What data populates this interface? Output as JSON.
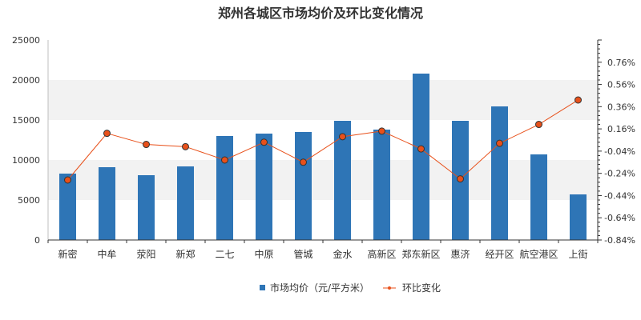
{
  "chart_data": {
    "type": "bar",
    "title": "郑州各城区市场均价及环比变化情况",
    "categories": [
      "新密",
      "中牟",
      "荥阳",
      "新郑",
      "二七",
      "中原",
      "管城",
      "金水",
      "高新区",
      "郑东新区",
      "惠济",
      "经开区",
      "航空港区",
      "上街"
    ],
    "series": [
      {
        "name": "市场均价（元/平方米）",
        "type": "bar",
        "axis": "left",
        "color": "#2e75b6",
        "values": [
          8300,
          9100,
          8100,
          9200,
          13000,
          13300,
          13500,
          14900,
          13800,
          20800,
          14900,
          16700,
          10700,
          5700
        ]
      },
      {
        "name": "环比变化",
        "type": "line",
        "axis": "right",
        "line_color": "#e8501a",
        "marker_color": "#e8501a",
        "values": [
          -0.3,
          0.12,
          0.02,
          0.0,
          -0.12,
          0.04,
          -0.14,
          0.09,
          0.14,
          -0.02,
          -0.29,
          0.03,
          0.2,
          0.42
        ]
      }
    ],
    "left_axis": {
      "min": 0,
      "max": 25000,
      "ticks": [
        "0",
        "5000",
        "10000",
        "15000",
        "20000",
        "25000"
      ]
    },
    "right_axis": {
      "min": -0.84,
      "max": 0.96,
      "ticks": [
        "-0.84%",
        "-0.64%",
        "-0.44%",
        "-0.24%",
        "-0.04%",
        "0.16%",
        "0.36%",
        "0.56%",
        "0.76%"
      ]
    },
    "grid": "horizontal-bands",
    "legend": "bottom"
  }
}
